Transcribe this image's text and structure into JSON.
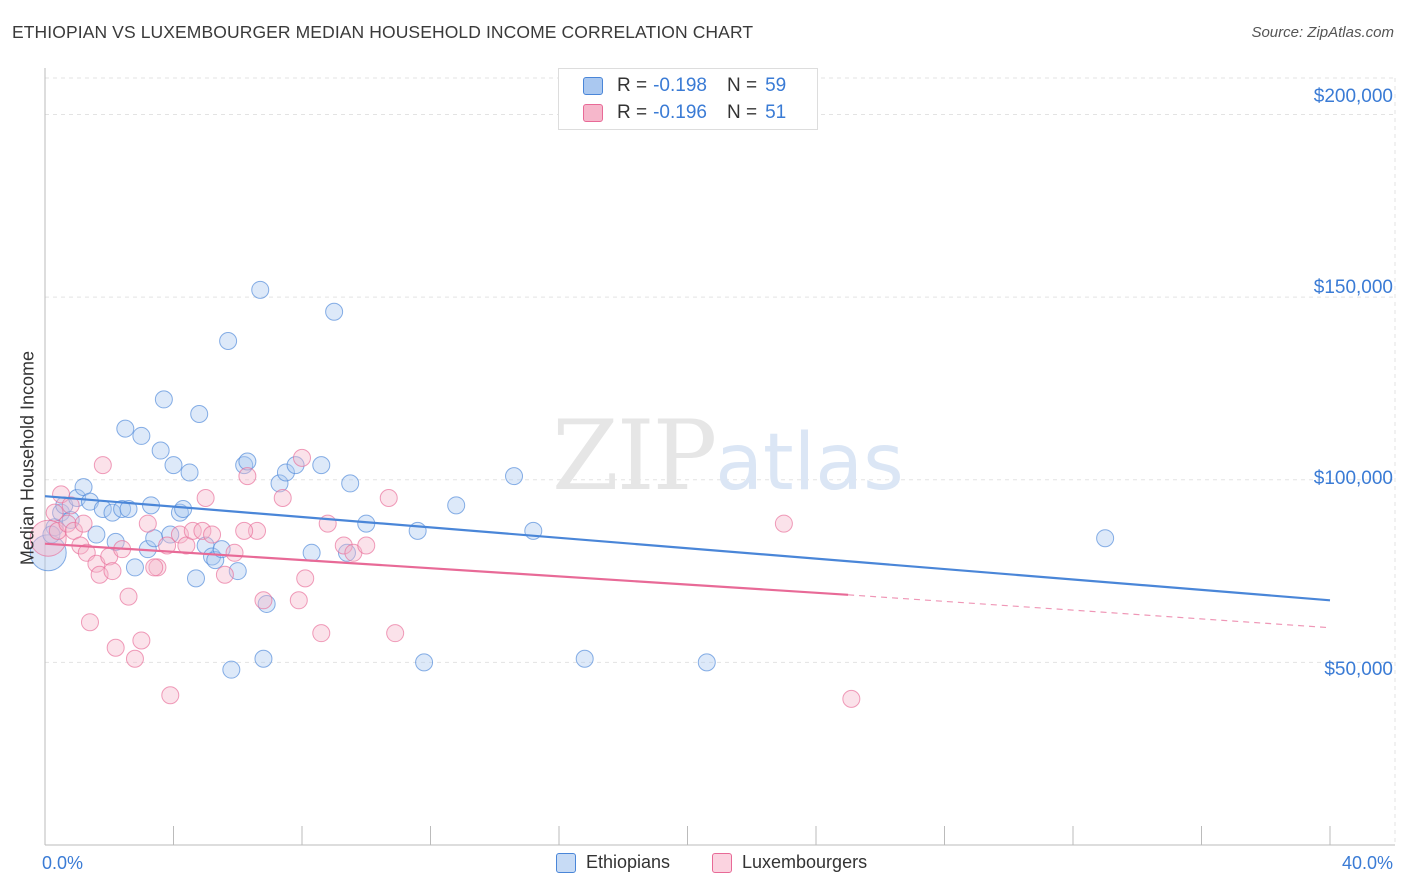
{
  "title": "ETHIOPIAN VS LUXEMBOURGER MEDIAN HOUSEHOLD INCOME CORRELATION CHART",
  "source": "Source: ZipAtlas.com",
  "watermark": {
    "zip": "ZIP",
    "atlas": "atlas"
  },
  "legend": {
    "rows": [
      {
        "r_label": "R =",
        "r_value": "-0.198",
        "n_label": "N =",
        "n_value": "59"
      },
      {
        "r_label": "R =",
        "r_value": "-0.196",
        "n_label": "N =",
        "n_value": "51"
      }
    ]
  },
  "bottom_legend": {
    "ethiopians": "Ethiopians",
    "luxembourgers": "Luxembourgers"
  },
  "colors": {
    "ethiopians": "#4a86d8",
    "ethiopians_fill": "#aac8f0",
    "luxembourgers": "#e86a97",
    "luxembourgers_fill": "#f6b7cb",
    "axis_text": "#3a7bd5",
    "grid": "#e3e3e3"
  },
  "chart_data": {
    "type": "scatter",
    "title": "ETHIOPIAN VS LUXEMBOURGER MEDIAN HOUSEHOLD INCOME CORRELATION CHART",
    "xlabel": "",
    "ylabel": "Median Household Income",
    "xlim": [
      0,
      40
    ],
    "ylim": [
      0,
      210000
    ],
    "x_tick_labels": [
      "0.0%",
      "40.0%"
    ],
    "y_ticks": [
      50000,
      100000,
      150000,
      200000
    ],
    "y_tick_labels": [
      "$50,000",
      "$100,000",
      "$150,000",
      "$200,000"
    ],
    "grid": true,
    "series": [
      {
        "name": "Ethiopians",
        "points": [
          [
            0.1,
            80000
          ],
          [
            0.3,
            87000
          ],
          [
            0.5,
            91000
          ],
          [
            0.6,
            93000
          ],
          [
            0.8,
            89000
          ],
          [
            1.0,
            95000
          ],
          [
            1.2,
            98000
          ],
          [
            1.4,
            94000
          ],
          [
            1.6,
            85000
          ],
          [
            1.8,
            92000
          ],
          [
            2.1,
            91000
          ],
          [
            2.2,
            83000
          ],
          [
            2.4,
            92000
          ],
          [
            2.5,
            114000
          ],
          [
            2.6,
            92000
          ],
          [
            2.8,
            76000
          ],
          [
            3.0,
            112000
          ],
          [
            3.2,
            81000
          ],
          [
            3.3,
            93000
          ],
          [
            3.4,
            84000
          ],
          [
            3.6,
            108000
          ],
          [
            3.7,
            122000
          ],
          [
            3.9,
            85000
          ],
          [
            4.0,
            104000
          ],
          [
            4.2,
            91000
          ],
          [
            4.3,
            92000
          ],
          [
            4.5,
            102000
          ],
          [
            4.7,
            73000
          ],
          [
            4.8,
            118000
          ],
          [
            5.0,
            82000
          ],
          [
            5.2,
            79000
          ],
          [
            5.3,
            78000
          ],
          [
            5.5,
            81000
          ],
          [
            5.7,
            138000
          ],
          [
            5.8,
            48000
          ],
          [
            6.0,
            75000
          ],
          [
            6.2,
            104000
          ],
          [
            6.3,
            105000
          ],
          [
            6.7,
            152000
          ],
          [
            6.8,
            51000
          ],
          [
            6.9,
            66000
          ],
          [
            7.3,
            99000
          ],
          [
            7.5,
            102000
          ],
          [
            7.8,
            104000
          ],
          [
            8.3,
            80000
          ],
          [
            8.6,
            104000
          ],
          [
            9.0,
            146000
          ],
          [
            9.5,
            99000
          ],
          [
            9.4,
            80000
          ],
          [
            10.0,
            88000
          ],
          [
            11.6,
            86000
          ],
          [
            11.8,
            50000
          ],
          [
            12.8,
            93000
          ],
          [
            14.6,
            101000
          ],
          [
            15.2,
            86000
          ],
          [
            16.8,
            51000
          ],
          [
            20.6,
            50000
          ],
          [
            33.0,
            84000
          ],
          [
            0.2,
            85000
          ]
        ]
      },
      {
        "name": "Luxembourgers",
        "points": [
          [
            0.1,
            84000
          ],
          [
            0.3,
            91000
          ],
          [
            0.4,
            86000
          ],
          [
            0.5,
            96000
          ],
          [
            0.7,
            88000
          ],
          [
            0.9,
            86000
          ],
          [
            1.1,
            82000
          ],
          [
            1.2,
            88000
          ],
          [
            1.3,
            80000
          ],
          [
            1.4,
            61000
          ],
          [
            1.6,
            77000
          ],
          [
            1.7,
            74000
          ],
          [
            1.8,
            104000
          ],
          [
            2.0,
            79000
          ],
          [
            2.1,
            75000
          ],
          [
            2.2,
            54000
          ],
          [
            2.4,
            81000
          ],
          [
            2.6,
            68000
          ],
          [
            2.8,
            51000
          ],
          [
            3.0,
            56000
          ],
          [
            3.2,
            88000
          ],
          [
            3.5,
            76000
          ],
          [
            3.8,
            82000
          ],
          [
            3.9,
            41000
          ],
          [
            4.2,
            85000
          ],
          [
            4.4,
            82000
          ],
          [
            4.6,
            86000
          ],
          [
            4.9,
            86000
          ],
          [
            5.0,
            95000
          ],
          [
            5.2,
            85000
          ],
          [
            5.6,
            74000
          ],
          [
            5.9,
            80000
          ],
          [
            6.3,
            101000
          ],
          [
            6.6,
            86000
          ],
          [
            6.8,
            67000
          ],
          [
            7.4,
            95000
          ],
          [
            7.9,
            67000
          ],
          [
            8.0,
            106000
          ],
          [
            8.1,
            73000
          ],
          [
            8.6,
            58000
          ],
          [
            8.8,
            88000
          ],
          [
            9.3,
            82000
          ],
          [
            9.6,
            80000
          ],
          [
            10.0,
            82000
          ],
          [
            10.7,
            95000
          ],
          [
            10.9,
            58000
          ],
          [
            23.0,
            88000
          ],
          [
            25.1,
            40000
          ],
          [
            0.8,
            93000
          ],
          [
            3.4,
            76000
          ],
          [
            6.2,
            86000
          ]
        ]
      }
    ],
    "trendlines": [
      {
        "name": "Ethiopians",
        "x": [
          0,
          40
        ],
        "y": [
          95500,
          67000
        ],
        "style": "solid"
      },
      {
        "name": "Luxembourgers",
        "x": [
          0,
          25
        ],
        "y": [
          82500,
          68500
        ],
        "style": "solid",
        "extension": {
          "x": [
            25,
            40
          ],
          "y": [
            68500,
            59500
          ],
          "style": "dashed"
        }
      }
    ]
  }
}
